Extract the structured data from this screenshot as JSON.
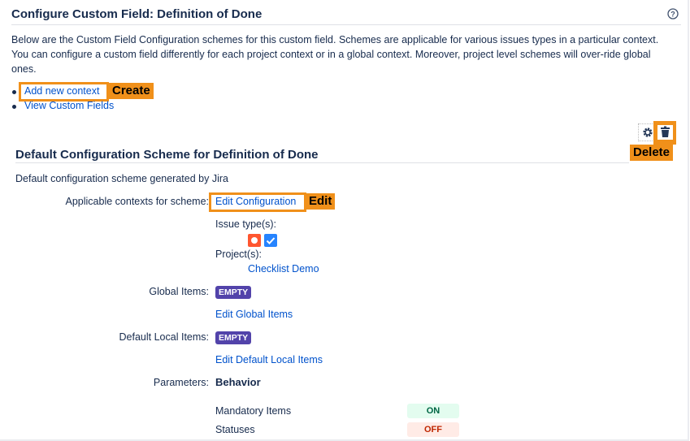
{
  "page": {
    "title": "Configure Custom Field: Definition of Done",
    "help_icon": "question-circle-icon",
    "description": "Below are the Custom Field Configuration schemes for this custom field. Schemes are applicable for various issues types in a particular context. You can configure a custom field differently for each project context or in a global context. Moreover, project level schemes will over-ride global ones.",
    "description_lines": [
      "Below are the Custom Field Configuration schemes for this custom field. Schemes are applicable for various issues types in a particular context.",
      "You can configure a custom field differently for each project context or in a global context. Moreover, project level schemes will over-ride global",
      "ones."
    ],
    "links": [
      {
        "label": "Add new context"
      },
      {
        "label": "View Custom Fields"
      }
    ]
  },
  "annotations": {
    "create": "Create",
    "delete": "Delete",
    "edit": "Edit",
    "color": "#f0901a"
  },
  "scheme": {
    "title": "Default Configuration Scheme for Definition of Done",
    "description": "Default configuration scheme generated by Jira",
    "contexts_label": "Applicable contexts for scheme:",
    "edit_configuration": "Edit Configuration",
    "issue_types_label": "Issue type(s):",
    "issue_type_icons": [
      "bug-icon",
      "task-icon"
    ],
    "projects_label": "Project(s):",
    "project": "Checklist Demo",
    "global_items_label": "Global Items:",
    "global_items_value": "EMPTY",
    "edit_global_items": "Edit Global Items",
    "default_local_items_label": "Default Local Items:",
    "default_local_items_value": "EMPTY",
    "edit_default_local_items": "Edit Default Local Items",
    "parameters_label": "Parameters:",
    "behavior_heading": "Behavior",
    "parameters": [
      {
        "name": "Mandatory Items",
        "value": "ON",
        "color": "#006644",
        "bg": "#e3fcef"
      },
      {
        "name": "Statuses",
        "value": "OFF",
        "color": "#bf2600",
        "bg": "#ffebe6"
      }
    ]
  }
}
